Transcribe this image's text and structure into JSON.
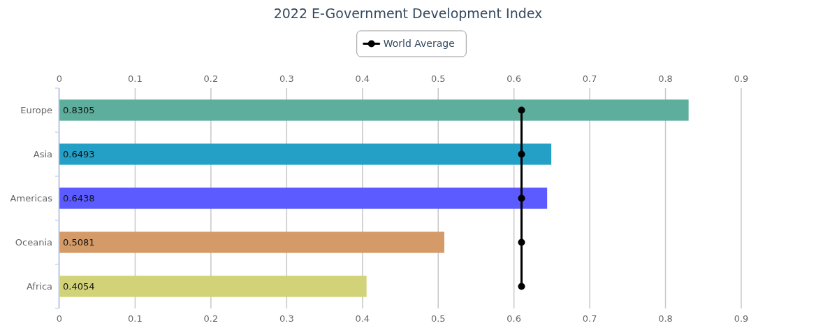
{
  "chart_data": {
    "type": "bar",
    "orientation": "horizontal",
    "title": "2022 E-Government Development Index",
    "categories": [
      "Europe",
      "Asia",
      "Americas",
      "Oceania",
      "Africa"
    ],
    "series": [
      {
        "colors": [
          "#5dae9c",
          "#24a0c6",
          "#5b5bff",
          "#d49b68",
          "#d2d278"
        ],
        "values": [
          0.8305,
          0.6493,
          0.6438,
          0.5081,
          0.4054
        ],
        "value_labels": [
          "0.8305",
          "0.6493",
          "0.6438",
          "0.5081",
          "0.4054"
        ]
      },
      {
        "type": "line",
        "name": "World Average",
        "color": "#000000",
        "marker": "circle",
        "values": [
          0.61,
          0.61,
          0.61,
          0.61,
          0.61
        ]
      }
    ],
    "xlim": [
      0,
      0.9
    ],
    "xticks": [
      0,
      0.1,
      0.2,
      0.3,
      0.4,
      0.5,
      0.6,
      0.7,
      0.8,
      0.9
    ],
    "x2lim": [
      0,
      0.9
    ],
    "x2ticks": [
      0,
      0.1,
      0.2,
      0.3,
      0.4,
      0.5,
      0.6,
      0.7,
      0.8,
      0.9
    ],
    "grid": "x",
    "legend": "top"
  }
}
